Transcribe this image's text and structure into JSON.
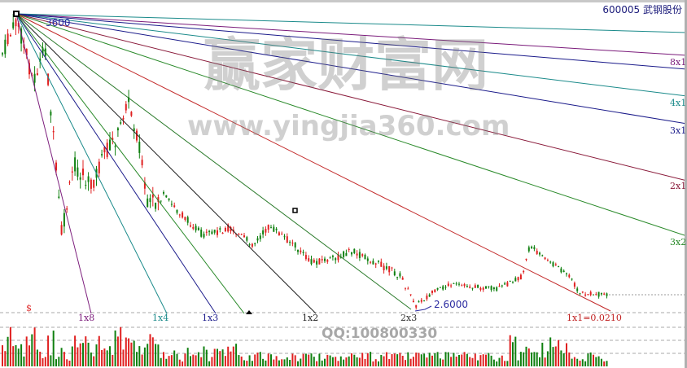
{
  "header": {
    "title": "600005  武钢股份"
  },
  "chart_data": {
    "type": "candlestick",
    "overlay": "gann-fan",
    "origin_label": "3600",
    "low_label": "2.6000",
    "dollar_marker": "$",
    "gann_lines": [
      {
        "label": "8x1",
        "color": "#7a1a7a"
      },
      {
        "label": "4x1",
        "color": "#1a8a8a"
      },
      {
        "label": "3x1",
        "color": "#1a1a8a"
      },
      {
        "label": "2x1",
        "color": "#8a1a3a"
      },
      {
        "label": "3x2",
        "color": "#2a8a2a"
      },
      {
        "label": "1x1=0.0210",
        "color": "#c02020"
      },
      {
        "label": "2x3",
        "color": "#2a7a2a"
      },
      {
        "label": "1x2",
        "color": "#222222"
      },
      {
        "label": "1x3",
        "color": "#1a1a8a"
      },
      {
        "label": "1x4",
        "color": "#1a8a8a"
      },
      {
        "label": "1x8",
        "color": "#7a1a7a"
      }
    ],
    "up_color": "#e02020",
    "down_color": "#108010",
    "panels": [
      "price",
      "volume"
    ]
  },
  "watermark": {
    "cn": "赢家财富网",
    "url": "www.yingjia360.com",
    "qq": "QQ:100800330"
  }
}
